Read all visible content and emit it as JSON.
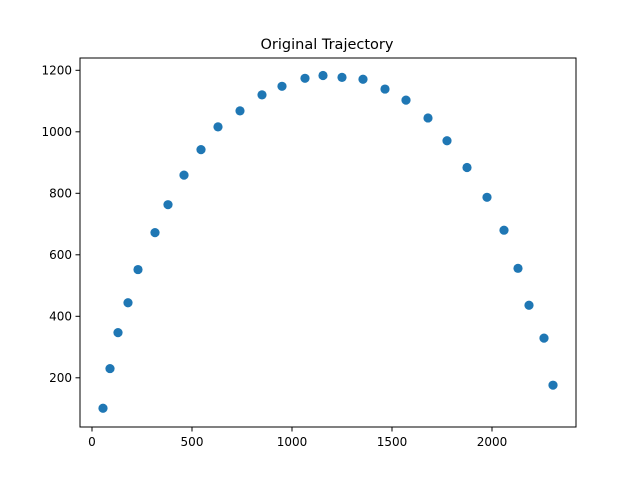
{
  "colors": {
    "marker": "#1f77b4",
    "axes": "#000000",
    "background": "#ffffff"
  },
  "chart_data": {
    "type": "scatter",
    "title": "Original Trajectory",
    "xlabel": "",
    "ylabel": "",
    "xlim": [
      -60,
      2420
    ],
    "ylim": [
      40,
      1240
    ],
    "xticks": [
      0,
      500,
      1000,
      1500,
      2000
    ],
    "yticks": [
      200,
      400,
      600,
      800,
      1000,
      1200
    ],
    "xtick_labels": [
      "0",
      "500",
      "1000",
      "1500",
      "2000"
    ],
    "ytick_labels": [
      "200",
      "400",
      "600",
      "800",
      "1000",
      "1200"
    ],
    "grid": false,
    "legend": "none",
    "points": [
      {
        "x": 55,
        "y": 101
      },
      {
        "x": 90,
        "y": 230
      },
      {
        "x": 130,
        "y": 347
      },
      {
        "x": 180,
        "y": 444
      },
      {
        "x": 230,
        "y": 552
      },
      {
        "x": 315,
        "y": 672
      },
      {
        "x": 380,
        "y": 763
      },
      {
        "x": 460,
        "y": 859
      },
      {
        "x": 545,
        "y": 942
      },
      {
        "x": 630,
        "y": 1016
      },
      {
        "x": 740,
        "y": 1068
      },
      {
        "x": 850,
        "y": 1120
      },
      {
        "x": 950,
        "y": 1148
      },
      {
        "x": 1065,
        "y": 1174
      },
      {
        "x": 1155,
        "y": 1183
      },
      {
        "x": 1250,
        "y": 1177
      },
      {
        "x": 1355,
        "y": 1171
      },
      {
        "x": 1465,
        "y": 1139
      },
      {
        "x": 1570,
        "y": 1103
      },
      {
        "x": 1680,
        "y": 1045
      },
      {
        "x": 1775,
        "y": 971
      },
      {
        "x": 1875,
        "y": 884
      },
      {
        "x": 1975,
        "y": 787
      },
      {
        "x": 2060,
        "y": 680
      },
      {
        "x": 2130,
        "y": 556
      },
      {
        "x": 2185,
        "y": 436
      },
      {
        "x": 2260,
        "y": 329
      },
      {
        "x": 2305,
        "y": 176
      }
    ]
  }
}
